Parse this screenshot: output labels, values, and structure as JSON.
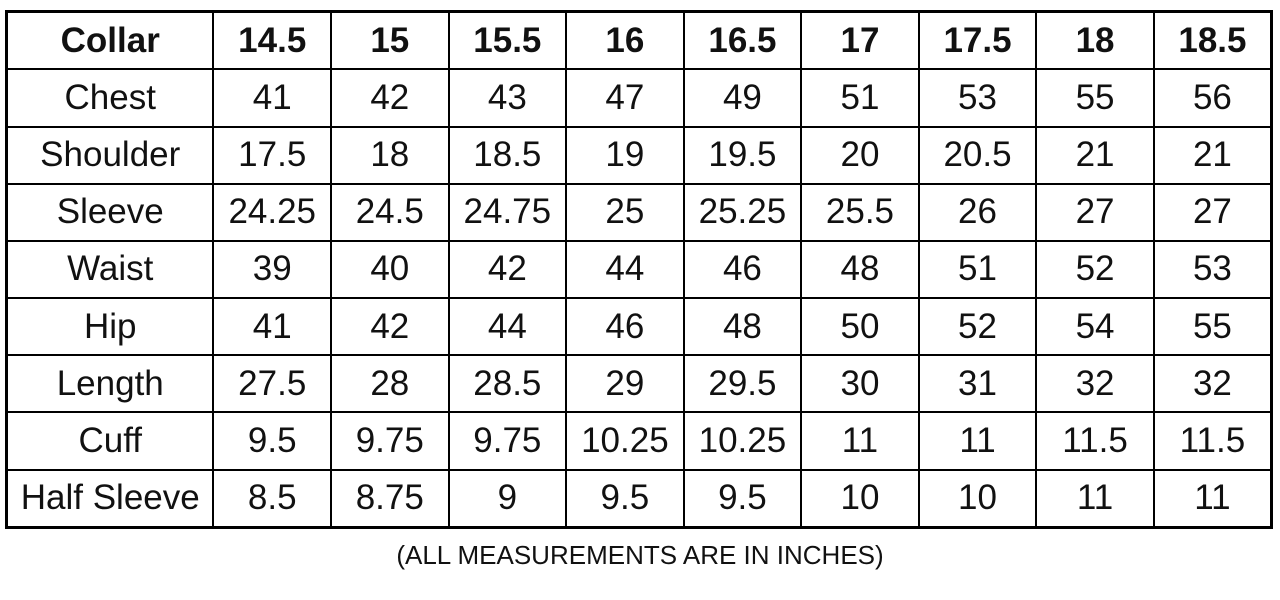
{
  "table": {
    "header": [
      "Collar",
      "14.5",
      "15",
      "15.5",
      "16",
      "16.5",
      "17",
      "17.5",
      "18",
      "18.5"
    ],
    "rows": [
      {
        "label": "Chest",
        "values": [
          "41",
          "42",
          "43",
          "47",
          "49",
          "51",
          "53",
          "55",
          "56"
        ]
      },
      {
        "label": "Shoulder",
        "values": [
          "17.5",
          "18",
          "18.5",
          "19",
          "19.5",
          "20",
          "20.5",
          "21",
          "21"
        ]
      },
      {
        "label": "Sleeve",
        "values": [
          "24.25",
          "24.5",
          "24.75",
          "25",
          "25.25",
          "25.5",
          "26",
          "27",
          "27"
        ]
      },
      {
        "label": "Waist",
        "values": [
          "39",
          "40",
          "42",
          "44",
          "46",
          "48",
          "51",
          "52",
          "53"
        ]
      },
      {
        "label": "Hip",
        "values": [
          "41",
          "42",
          "44",
          "46",
          "48",
          "50",
          "52",
          "54",
          "55"
        ]
      },
      {
        "label": "Length",
        "values": [
          "27.5",
          "28",
          "28.5",
          "29",
          "29.5",
          "30",
          "31",
          "32",
          "32"
        ]
      },
      {
        "label": "Cuff",
        "values": [
          "9.5",
          "9.75",
          "9.75",
          "10.25",
          "10.25",
          "11",
          "11",
          "11.5",
          "11.5"
        ]
      },
      {
        "label": "Half Sleeve",
        "values": [
          "8.5",
          "8.75",
          "9",
          "9.5",
          "9.5",
          "10",
          "10",
          "11",
          "11"
        ]
      }
    ]
  },
  "footer": {
    "note": "(ALL MEASUREMENTS ARE IN INCHES)"
  },
  "colors": {
    "border": "#000000",
    "text": "#111111",
    "background": "#ffffff"
  },
  "chart_data": {
    "type": "table",
    "title": "",
    "columns": [
      "Collar",
      14.5,
      15,
      15.5,
      16,
      16.5,
      17,
      17.5,
      18,
      18.5
    ],
    "rows": [
      [
        "Chest",
        41,
        42,
        43,
        47,
        49,
        51,
        53,
        55,
        56
      ],
      [
        "Shoulder",
        17.5,
        18,
        18.5,
        19,
        19.5,
        20,
        20.5,
        21,
        21
      ],
      [
        "Sleeve",
        24.25,
        24.5,
        24.75,
        25,
        25.25,
        25.5,
        26,
        27,
        27
      ],
      [
        "Waist",
        39,
        40,
        42,
        44,
        46,
        48,
        51,
        52,
        53
      ],
      [
        "Hip",
        41,
        42,
        44,
        46,
        48,
        50,
        52,
        54,
        55
      ],
      [
        "Length",
        27.5,
        28,
        28.5,
        29,
        29.5,
        30,
        31,
        32,
        32
      ],
      [
        "Cuff",
        9.5,
        9.75,
        9.75,
        10.25,
        10.25,
        11,
        11,
        11.5,
        11.5
      ],
      [
        "Half Sleeve",
        8.5,
        8.75,
        9,
        9.5,
        9.5,
        10,
        10,
        11,
        11
      ]
    ],
    "annotations": [
      "(ALL MEASUREMENTS ARE IN INCHES)"
    ],
    "layout": {
      "grid": true,
      "units": "inches"
    }
  }
}
